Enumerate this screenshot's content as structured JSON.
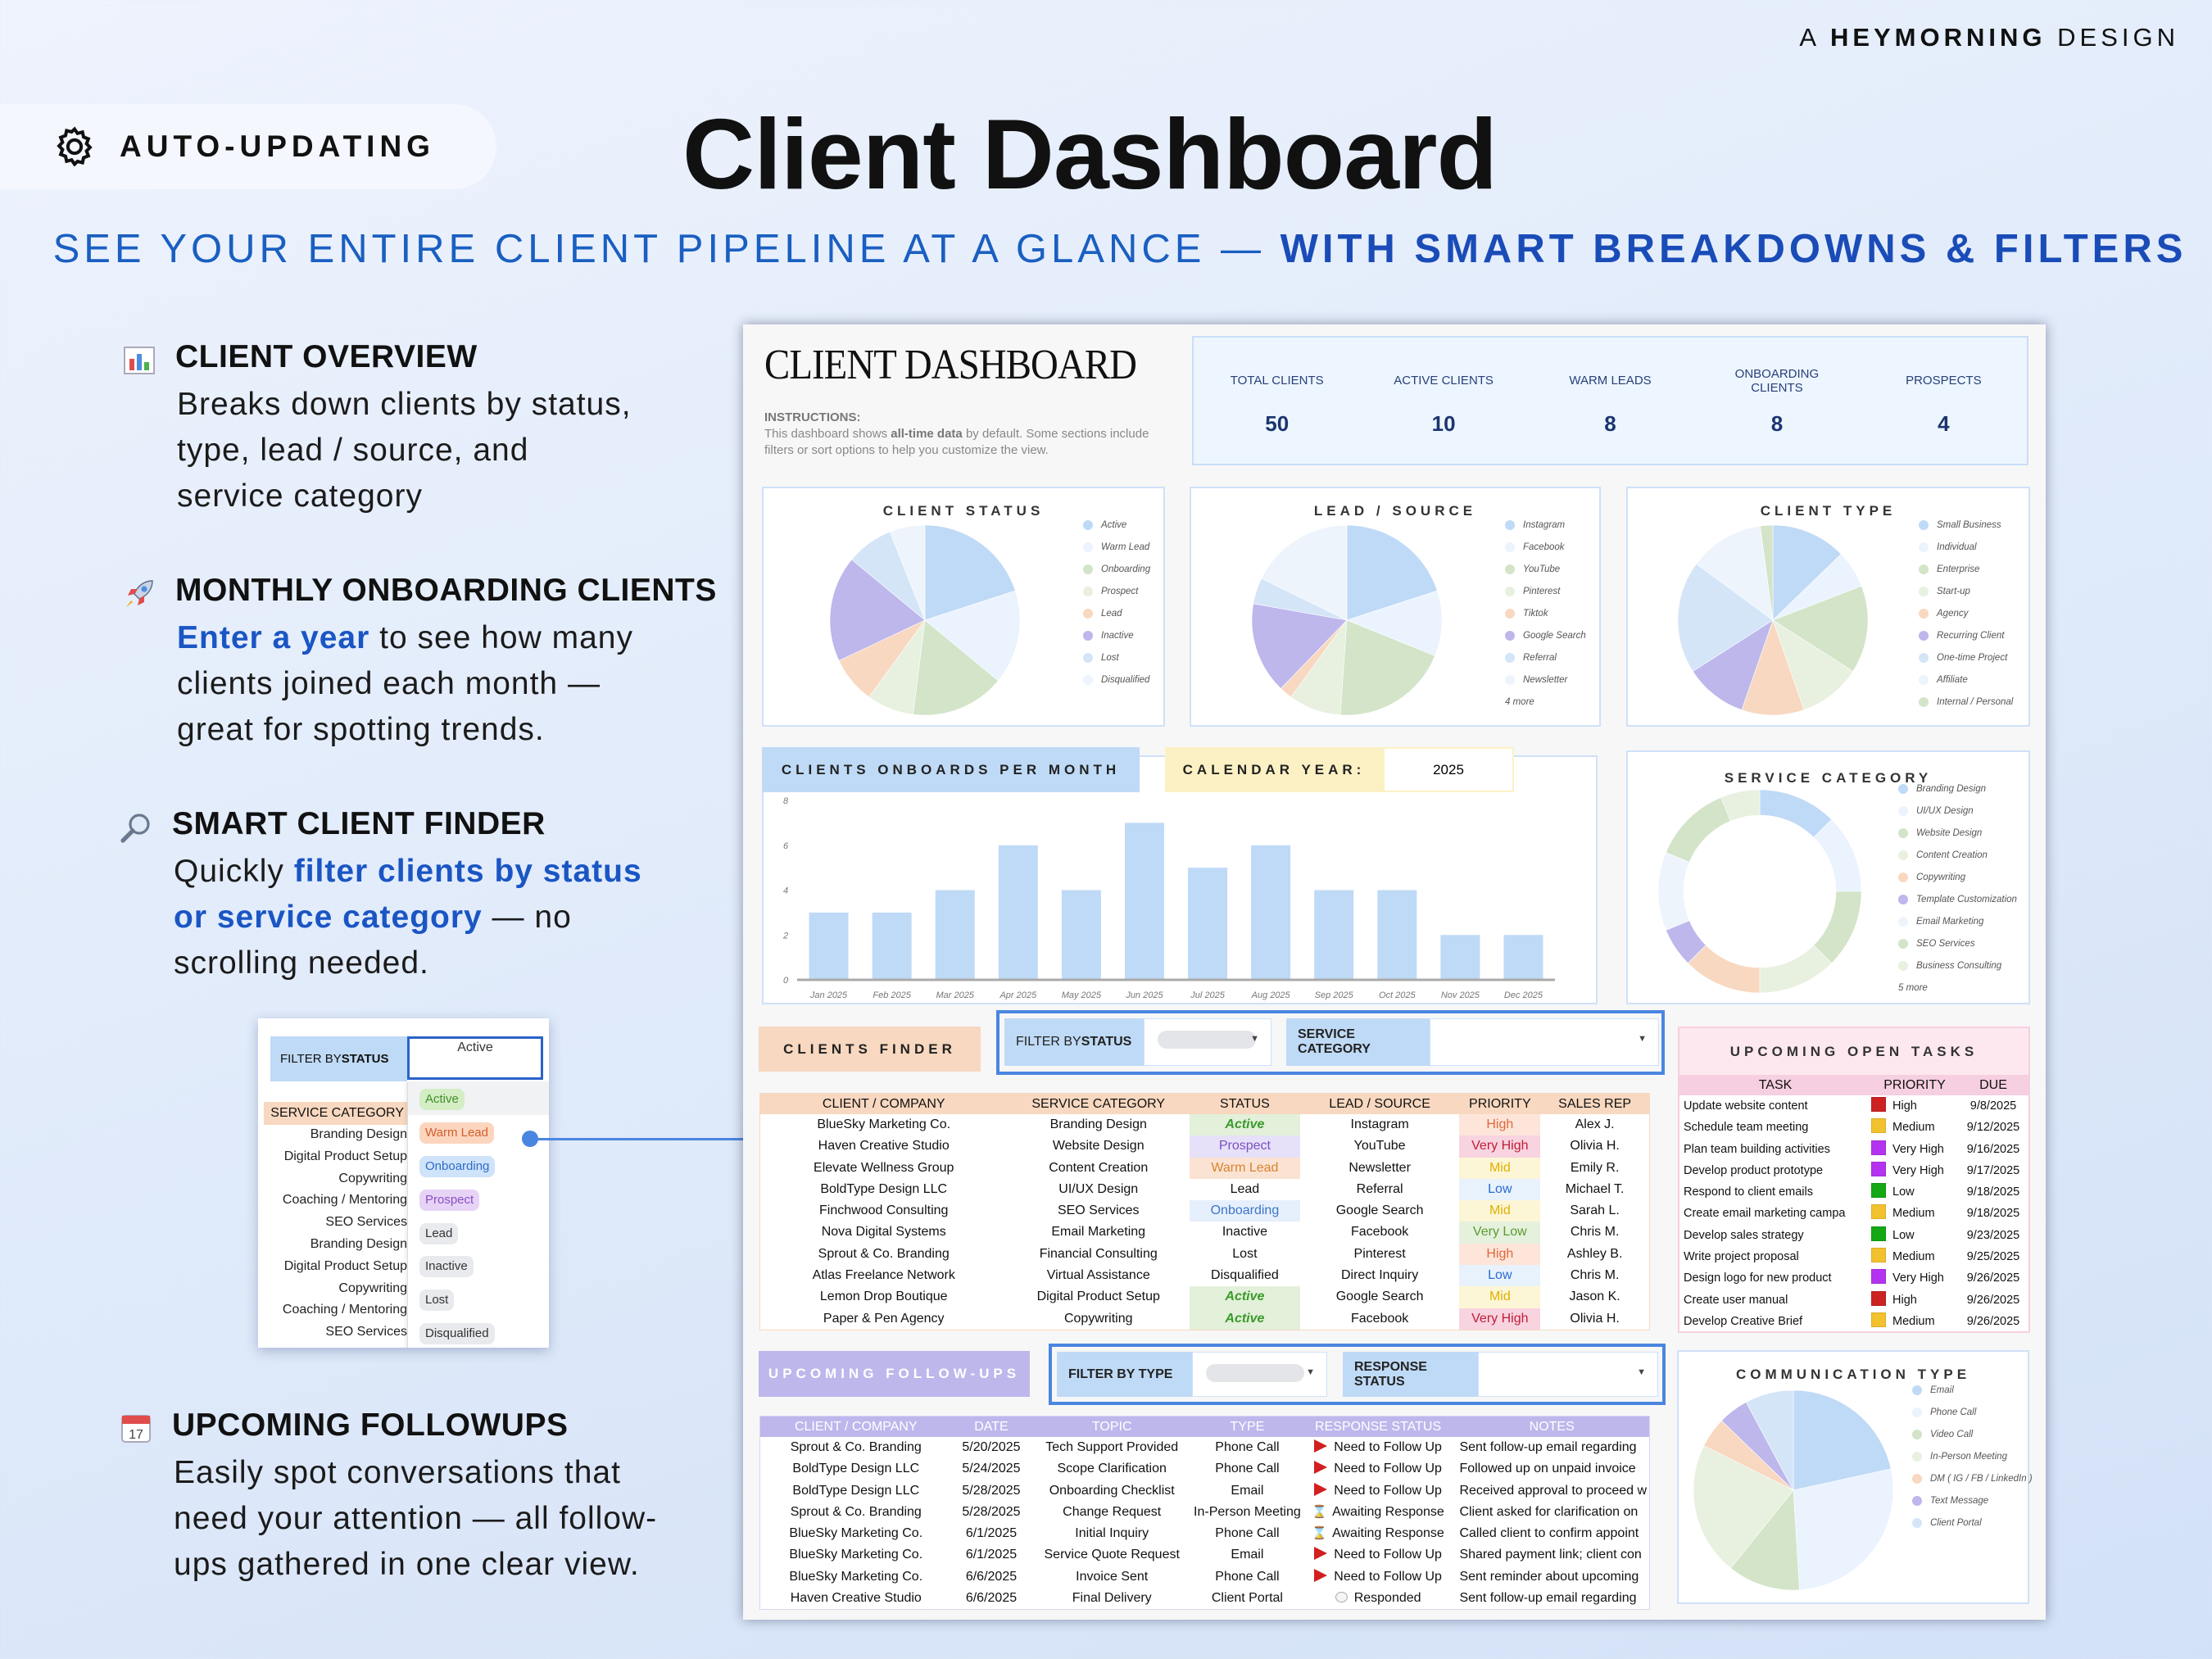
{
  "brand": {
    "prefix": "A",
    "name": "HEYMORNING",
    "suffix": "DESIGN"
  },
  "badge": {
    "label": "AUTO-UPDATING",
    "icon": "gear-icon"
  },
  "hero": {
    "title": "Client Dashboard",
    "subtitle_plain": "SEE YOUR ENTIRE CLIENT PIPELINE AT A GLANCE — ",
    "subtitle_bold": "WITH SMART BREAKDOWNS & FILTERS",
    "accent_color": "#1a5fc1"
  },
  "features": [
    {
      "icon": "bar-chart-icon",
      "title": "CLIENT OVERVIEW",
      "lines": [
        [
          {
            "t": "Breaks down clients by status,",
            "hl": false
          }
        ],
        [
          {
            "t": "type, lead / source, and",
            "hl": false
          }
        ],
        [
          {
            "t": "service category",
            "hl": false
          }
        ]
      ]
    },
    {
      "icon": "rocket-icon",
      "title": "MONTHLY ONBOARDING CLIENTS",
      "lines": [
        [
          {
            "t": "Enter a year",
            "hl": true
          },
          {
            "t": " to see how many",
            "hl": false
          }
        ],
        [
          {
            "t": "clients joined each month —",
            "hl": false
          }
        ],
        [
          {
            "t": "great for spotting trends.",
            "hl": false
          }
        ]
      ]
    },
    {
      "icon": "magnifier-icon",
      "title": "SMART CLIENT FINDER",
      "lines": [
        [
          {
            "t": "Quickly ",
            "hl": false
          },
          {
            "t": "filter clients by status",
            "hl": true
          }
        ],
        [
          {
            "t": "or service category",
            "hl": true
          },
          {
            "t": " — no",
            "hl": false
          }
        ],
        [
          {
            "t": "scrolling needed.",
            "hl": false
          }
        ]
      ]
    },
    {
      "icon": "calendar-icon",
      "title": "UPCOMING FOLLOWUPS",
      "lines": [
        [
          {
            "t": "Easily spot conversations that",
            "hl": false
          }
        ],
        [
          {
            "t": "need your attention — all follow-",
            "hl": false
          }
        ],
        [
          {
            "t": "ups gathered in one clear view.",
            "hl": false
          }
        ]
      ]
    }
  ],
  "inset": {
    "filter_label_a": "FILTER BY ",
    "filter_label_b": "STATUS",
    "selected": "Active",
    "table_header": "SERVICE CATEGORY",
    "rows": [
      "Branding Design",
      "Digital Product Setup",
      "Copywriting",
      "Coaching / Mentoring",
      "SEO Services",
      "Branding Design",
      "Digital Product Setup",
      "Copywriting",
      "Coaching / Mentoring",
      "SEO Services"
    ],
    "options": [
      {
        "label": "Active",
        "bg": "#d4edc4",
        "fg": "#3f8f2c"
      },
      {
        "label": "Warm Lead",
        "bg": "#fcd5bf",
        "fg": "#d0602a"
      },
      {
        "label": "Onboarding",
        "bg": "#cfe3fa",
        "fg": "#2f6cc8"
      },
      {
        "label": "Prospect",
        "bg": "#e7d3f6",
        "fg": "#8a4fc4"
      },
      {
        "label": "Lead",
        "bg": "#e8eaed",
        "fg": "#333333"
      },
      {
        "label": "Inactive",
        "bg": "#e8eaed",
        "fg": "#333333"
      },
      {
        "label": "Lost",
        "bg": "#e8eaed",
        "fg": "#333333"
      },
      {
        "label": "Disqualified",
        "bg": "#e8eaed",
        "fg": "#333333"
      }
    ]
  },
  "dashboard": {
    "title": "CLIENT DASHBOARD",
    "instructions_label": "INSTRUCTIONS:",
    "instructions_a": "This dashboard shows ",
    "instructions_b": "all-time data",
    "instructions_c": " by default. Some sections include filters or sort options to help you customize the view.",
    "kpis": [
      {
        "label": "TOTAL CLIENTS",
        "value": "50"
      },
      {
        "label": "ACTIVE CLIENTS",
        "value": "10"
      },
      {
        "label": "WARM LEADS",
        "value": "8"
      },
      {
        "label": "ONBOARDING CLIENTS",
        "value": "8"
      },
      {
        "label": "PROSPECTS",
        "value": "4"
      }
    ]
  },
  "chart_data": [
    {
      "type": "pie",
      "title": "CLIENT STATUS",
      "legend": "right",
      "categories": [
        "Active",
        "Warm Lead",
        "Onboarding",
        "Prospect",
        "Lead",
        "Inactive",
        "Lost",
        "Disqualified"
      ],
      "values": [
        10,
        8,
        8,
        4,
        4,
        9,
        4,
        3
      ],
      "colors": [
        "#bfdaf6",
        "#eaf3fe",
        "#d3e4c8",
        "#e8f0e0",
        "#f8d8c0",
        "#bdb7ec",
        "#d4e5f8",
        "#eef4fc"
      ]
    },
    {
      "type": "pie",
      "title": "LEAD / SOURCE",
      "legend": "right",
      "more": "4 more",
      "categories": [
        "Instagram",
        "Facebook",
        "YouTube",
        "Pinterest",
        "Tiktok",
        "Google Search",
        "Referral",
        "Newsletter"
      ],
      "values": [
        9,
        5,
        9,
        4,
        1,
        7,
        2,
        8
      ],
      "colors": [
        "#bfdaf6",
        "#eaf3fe",
        "#d3e4c8",
        "#e8f0e0",
        "#f8d8c0",
        "#bdb7ec",
        "#d4e5f8",
        "#eef4fc"
      ]
    },
    {
      "type": "pie",
      "title": "CLIENT TYPE",
      "legend": "right",
      "categories": [
        "Small Business",
        "Individual",
        "Enterprise",
        "Start-up",
        "Agency",
        "Recurring Client",
        "One-time Project",
        "Affiliate",
        "Internal / Personal"
      ],
      "values": [
        6,
        3,
        7,
        5,
        5,
        5,
        9,
        6,
        1
      ],
      "colors": [
        "#bfdaf6",
        "#eaf3fe",
        "#d3e4c8",
        "#e8f0e0",
        "#f8d8c0",
        "#bdb7ec",
        "#d4e5f8",
        "#eef4fc",
        "#d3e4c8"
      ]
    },
    {
      "type": "bar",
      "title": "CLIENTS ONBOARDS PER MONTH",
      "categories": [
        "Jan 2025",
        "Feb 2025",
        "Mar 2025",
        "Apr 2025",
        "May 2025",
        "Jun 2025",
        "Jul 2025",
        "Aug 2025",
        "Sep 2025",
        "Oct 2025",
        "Nov 2025",
        "Dec 2025"
      ],
      "values": [
        3,
        3,
        4,
        6,
        4,
        7,
        5,
        6,
        4,
        4,
        2,
        2
      ],
      "ylim": [
        0,
        8
      ],
      "yticks": [
        0,
        2,
        4,
        6,
        8
      ],
      "color": "#bfdaf6",
      "year_label": "CALENDAR YEAR:",
      "year": "2025"
    },
    {
      "type": "donut",
      "title": "SERVICE CATEGORY",
      "legend": "right",
      "more": "5 more",
      "categories": [
        "Branding Design",
        "UI/UX Design",
        "Website Design",
        "Content Creation",
        "Copywriting",
        "Template Customization",
        "Email Marketing",
        "SEO Services",
        "Business Consulting"
      ],
      "values": [
        4,
        4,
        4,
        4,
        4,
        2,
        4,
        4,
        2
      ],
      "colors": [
        "#bfdaf6",
        "#eaf3fe",
        "#d3e4c8",
        "#e8f0e0",
        "#f8d8c0",
        "#bdb7ec",
        "#eef4fc",
        "#d3e4c8",
        "#e8f0e0"
      ]
    },
    {
      "type": "pie",
      "title": "COMMUNICATION TYPE",
      "legend": "right",
      "categories": [
        "Email",
        "Phone Call",
        "Video Call",
        "In-Person Meeting",
        "DM ( IG / FB / LinkedIn )",
        "Text Message",
        "Client Portal"
      ],
      "values": [
        22,
        28,
        12,
        22,
        5,
        5,
        8
      ],
      "colors": [
        "#bfdaf6",
        "#eaf3fe",
        "#d3e4c8",
        "#e8f0e0",
        "#f8d8c0",
        "#bdb7ec",
        "#d4e5f8"
      ]
    }
  ],
  "finder": {
    "label": "CLIENTS FINDER",
    "filter_status_label_a": "FILTER BY ",
    "filter_status_label_b": "STATUS",
    "service_label": "SERVICE CATEGORY",
    "columns": [
      "CLIENT / COMPANY",
      "SERVICE CATEGORY",
      "STATUS",
      "LEAD / SOURCE",
      "PRIORITY",
      "SALES REP"
    ],
    "rows": [
      [
        "BlueSky Marketing Co.",
        "Branding Design",
        "Active",
        "Instagram",
        "High",
        "Alex J."
      ],
      [
        "Haven Creative Studio",
        "Website Design",
        "Prospect",
        "YouTube",
        "Very High",
        "Olivia H."
      ],
      [
        "Elevate Wellness Group",
        "Content Creation",
        "Warm Lead",
        "Newsletter",
        "Mid",
        "Emily R."
      ],
      [
        "BoldType Design LLC",
        "UI/UX Design",
        "Lead",
        "Referral",
        "Low",
        "Michael T."
      ],
      [
        "Finchwood Consulting",
        "SEO Services",
        "Onboarding",
        "Google Search",
        "Mid",
        "Sarah L."
      ],
      [
        "Nova Digital Systems",
        "Email Marketing",
        "Inactive",
        "Facebook",
        "Very Low",
        "Chris M."
      ],
      [
        "Sprout & Co. Branding",
        "Financial Consulting",
        "Lost",
        "Pinterest",
        "High",
        "Ashley B."
      ],
      [
        "Atlas Freelance Network",
        "Virtual Assistance",
        "Disqualified",
        "Direct Inquiry",
        "Low",
        "Chris M."
      ],
      [
        "Lemon Drop Boutique",
        "Digital Product Setup",
        "Active",
        "Google Search",
        "Mid",
        "Jason K."
      ],
      [
        "Paper & Pen Agency",
        "Copywriting",
        "Active",
        "Facebook",
        "Very High",
        "Olivia H."
      ]
    ]
  },
  "tasks": {
    "title": "UPCOMING OPEN TASKS",
    "columns": [
      "TASK",
      "PRIORITY",
      "DUE"
    ],
    "priority_colors": {
      "High": "#cc2222",
      "Medium": "#f2c12e",
      "Very High": "#b433f0",
      "Low": "#14a814"
    },
    "rows": [
      [
        "Update website content",
        "High",
        "9/8/2025"
      ],
      [
        "Schedule team meeting",
        "Medium",
        "9/12/2025"
      ],
      [
        "Plan team building activities",
        "Very High",
        "9/16/2025"
      ],
      [
        "Develop product prototype",
        "Very High",
        "9/17/2025"
      ],
      [
        "Respond to client emails",
        "Low",
        "9/18/2025"
      ],
      [
        "Create email marketing campa",
        "Medium",
        "9/18/2025"
      ],
      [
        "Develop sales strategy",
        "Low",
        "9/23/2025"
      ],
      [
        "Write project proposal",
        "Medium",
        "9/25/2025"
      ],
      [
        "Design logo for new product",
        "Very High",
        "9/26/2025"
      ],
      [
        "Create user manual",
        "High",
        "9/26/2025"
      ],
      [
        "Develop Creative Brief",
        "Medium",
        "9/26/2025"
      ]
    ]
  },
  "followups": {
    "label": "UPCOMING FOLLOW-UPS",
    "filter_type_label": "FILTER BY TYPE",
    "response_label": "RESPONSE STATUS",
    "columns": [
      "CLIENT / COMPANY",
      "DATE",
      "TOPIC",
      "TYPE",
      "RESPONSE STATUS",
      "NOTES"
    ],
    "rows": [
      [
        "Sprout & Co. Branding",
        "5/20/2025",
        "Tech Support Provided",
        "Phone Call",
        "Need to Follow Up",
        "Sent follow-up email regarding"
      ],
      [
        "BoldType Design LLC",
        "5/24/2025",
        "Scope Clarification",
        "Phone Call",
        "Need to Follow Up",
        "Followed up on unpaid invoice"
      ],
      [
        "BoldType Design LLC",
        "5/28/2025",
        "Onboarding Checklist",
        "Email",
        "Need to Follow Up",
        "Received approval to proceed w"
      ],
      [
        "Sprout & Co. Branding",
        "5/28/2025",
        "Change Request",
        "In-Person Meeting",
        "Awaiting Response",
        "Client asked for clarification on"
      ],
      [
        "BlueSky Marketing Co.",
        "6/1/2025",
        "Initial Inquiry",
        "Phone Call",
        "Awaiting Response",
        "Called client to confirm appoint"
      ],
      [
        "BlueSky Marketing Co.",
        "6/1/2025",
        "Service Quote Request",
        "Email",
        "Need to Follow Up",
        "Shared payment link; client con"
      ],
      [
        "BlueSky Marketing Co.",
        "6/6/2025",
        "Invoice Sent",
        "Phone Call",
        "Need to Follow Up",
        "Sent reminder about upcoming"
      ],
      [
        "Haven Creative Studio",
        "6/6/2025",
        "Final Delivery",
        "Client Portal",
        "Responded",
        "Sent follow-up email regarding"
      ]
    ]
  }
}
